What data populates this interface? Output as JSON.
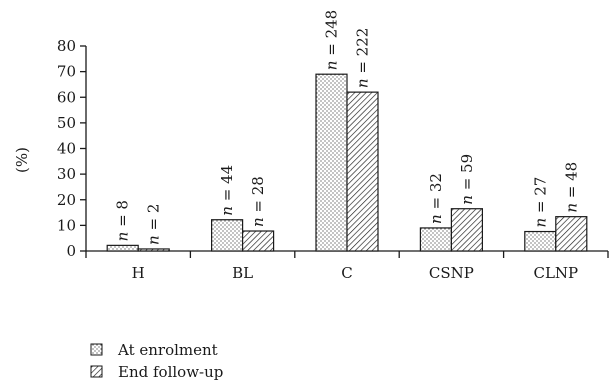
{
  "chart_data": {
    "type": "bar",
    "ylabel": "(%)",
    "xlabel": "",
    "title": "",
    "ylim": [
      0,
      80
    ],
    "yticks": [
      0,
      10,
      20,
      30,
      40,
      50,
      60,
      70,
      80
    ],
    "categories": [
      "H",
      "BL",
      "C",
      "CSNP",
      "CLNP"
    ],
    "series": [
      {
        "name": "At enrolment",
        "pattern": "dots",
        "values": [
          2.2,
          12.2,
          69,
          9,
          7.6
        ],
        "n_labels": [
          "n = 8",
          "n = 44",
          "n = 248",
          "n = 32",
          "n = 27"
        ]
      },
      {
        "name": "End follow-up",
        "pattern": "hatch",
        "values": [
          0.8,
          7.8,
          62,
          16.5,
          13.4
        ],
        "n_labels": [
          "n = 2",
          "n = 28",
          "n = 222",
          "n = 59",
          "n = 48"
        ]
      }
    ],
    "legend_position": "bottom-left",
    "colors": {
      "stroke": "#1a1a1a",
      "fill": "#ffffff"
    }
  }
}
